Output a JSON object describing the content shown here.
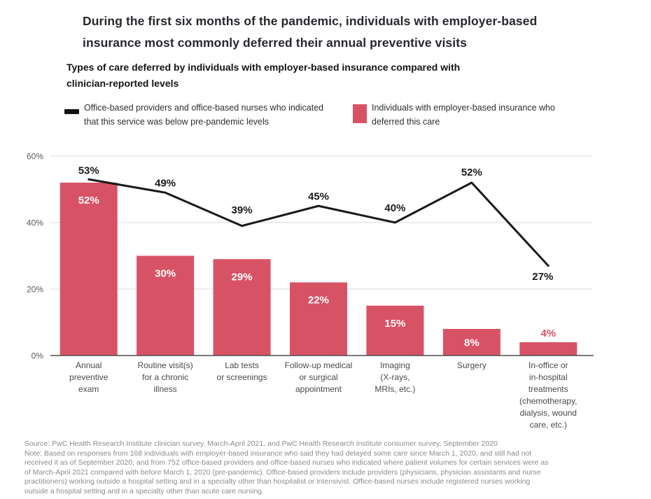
{
  "title": "During the first six months of the pandemic, individuals with employer-based\ninsurance most commonly deferred their annual preventive visits",
  "subtitle": "Types of care deferred by individuals with employer-based insurance compared with\nclinician-reported levels",
  "legend": {
    "line_series": "Office-based providers and office-based nurses who indicated\nthat this service was below pre-pandemic levels",
    "bar_series": "Individuals with employer-based insurance who\ndeferred this care"
  },
  "colors": {
    "bar": "#d85266",
    "line": "#1a1a1a",
    "grid": "#d9d9d9",
    "axis": "#4d4d4d",
    "tick_label": "#595959",
    "category_label": "#4a4a4a",
    "bar_label": "#ffffff",
    "line_label": "#1a1a1a",
    "footer_text": "#8c8c8c"
  },
  "chart_data": {
    "type": "bar",
    "title": "Types of care deferred by individuals with employer-based insurance compared with clinician-reported levels",
    "unit": "%",
    "categories": [
      "Annual preventive exam",
      "Routine visit(s) for a chronic illness",
      "Lab tests or screenings",
      "Follow-up medical or surgical appointment",
      "Imaging (X-rays, MRIs, etc.)",
      "Surgery",
      "In-office or in-hospital treatments (chemotherapy, dialysis, wound care, etc.)"
    ],
    "category_label_lines": [
      [
        "Annual",
        "preventive",
        "exam"
      ],
      [
        "Routine visit(s)",
        "for a chronic",
        "illness"
      ],
      [
        "Lab tests",
        "or screenings"
      ],
      [
        "Follow-up medical",
        "or surgical",
        "appointment"
      ],
      [
        "Imaging",
        "(X-rays,",
        "MRIs, etc.)"
      ],
      [
        "Surgery"
      ],
      [
        "In-office or",
        "in-hospital",
        "treatments",
        "(chemotherapy,",
        "dialysis, wound",
        "care, etc.)"
      ]
    ],
    "series": [
      {
        "name": "Individuals with employer-based insurance who deferred this care",
        "type": "bar",
        "values": [
          52,
          30,
          29,
          22,
          15,
          8,
          4
        ],
        "color": "#d85266"
      },
      {
        "name": "Office-based providers and office-based nurses who indicated that this service was below pre-pandemic levels",
        "type": "line",
        "values": [
          53,
          49,
          39,
          45,
          40,
          52,
          27
        ],
        "color": "#1a1a1a"
      }
    ],
    "y_ticks": [
      0,
      20,
      40,
      60
    ],
    "ylim": [
      0,
      60
    ],
    "grid": true,
    "legend_position": "top",
    "value_labels": true
  },
  "footer": {
    "source": "Source: PwC Health Research Institute clinician survey, March-April 2021, and PwC Health Research Institute consumer survey, September 2020",
    "note": "Note: Based on responses from 168 individuals with employer-based insurance who said they had delayed some care since March 1, 2020, and still had not\nreceived it as of September 2020; and from 752 office-based providers and office-based nurses who indicated where patient volumes for certain services were as\nof March-April 2021 compared with before March 1, 2020 (pre-pandemic). Office-based providers include providers (physicians, physician assistants and nurse\npractitioners) working outside a hospital setting and in a specialty other than hospitalist or intensivist. Office-based nurses include registered nurses working\noutside a hospital setting and in a specialty other than acute care nursing."
  }
}
